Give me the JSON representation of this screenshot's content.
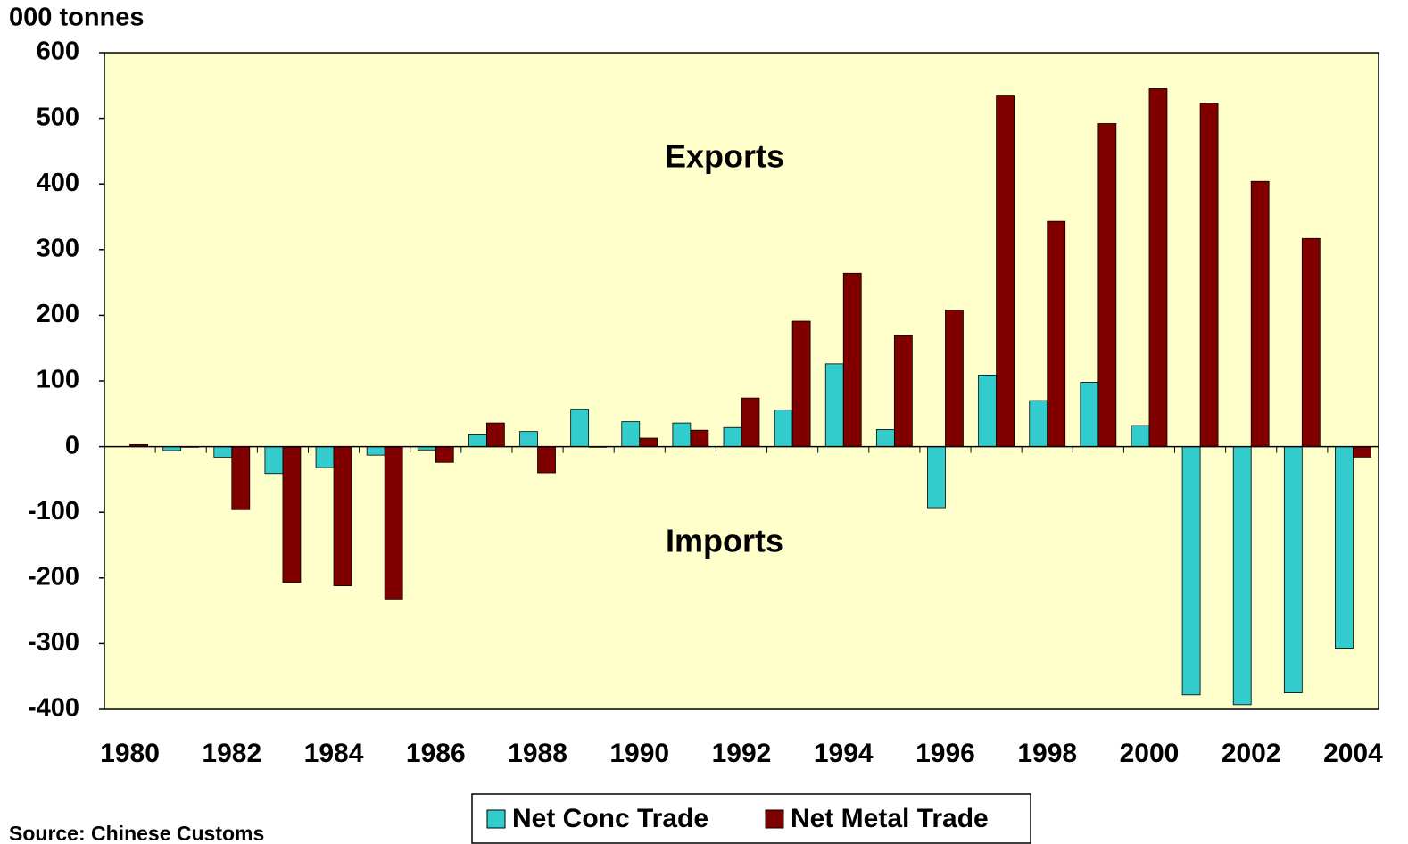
{
  "chart_data": {
    "type": "bar",
    "y_axis_label": "000 tonnes",
    "annotations": [
      "Exports",
      "Imports"
    ],
    "source": "Source: Chinese Customs",
    "categories": [
      "1980",
      null,
      "1982",
      null,
      "1984",
      null,
      "1986",
      null,
      "1988",
      null,
      "1990",
      null,
      "1992",
      null,
      "1994",
      null,
      "1996",
      null,
      "1998",
      null,
      "2000",
      null,
      "2002",
      null,
      "2004"
    ],
    "series": [
      {
        "name": "Net Conc Trade",
        "color": "#33cccc",
        "values": [
          0,
          -6,
          -16,
          -41,
          -32,
          -13,
          -5,
          18,
          23,
          57,
          38,
          36,
          29,
          56,
          126,
          26,
          -93,
          109,
          70,
          98,
          32,
          -378,
          -393,
          -375,
          -307
        ]
      },
      {
        "name": "Net Metal Trade",
        "color": "#800000",
        "values": [
          3,
          -1,
          -96,
          -207,
          -212,
          -232,
          -24,
          36,
          -40,
          -1,
          13,
          25,
          74,
          191,
          264,
          169,
          208,
          534,
          343,
          492,
          545,
          523,
          404,
          317,
          -16
        ]
      }
    ],
    "ylim": [
      -400,
      600
    ],
    "yticks": [
      -400,
      -300,
      -200,
      -100,
      0,
      100,
      200,
      300,
      400,
      500,
      600
    ],
    "plot_background": "#ffffcc"
  }
}
